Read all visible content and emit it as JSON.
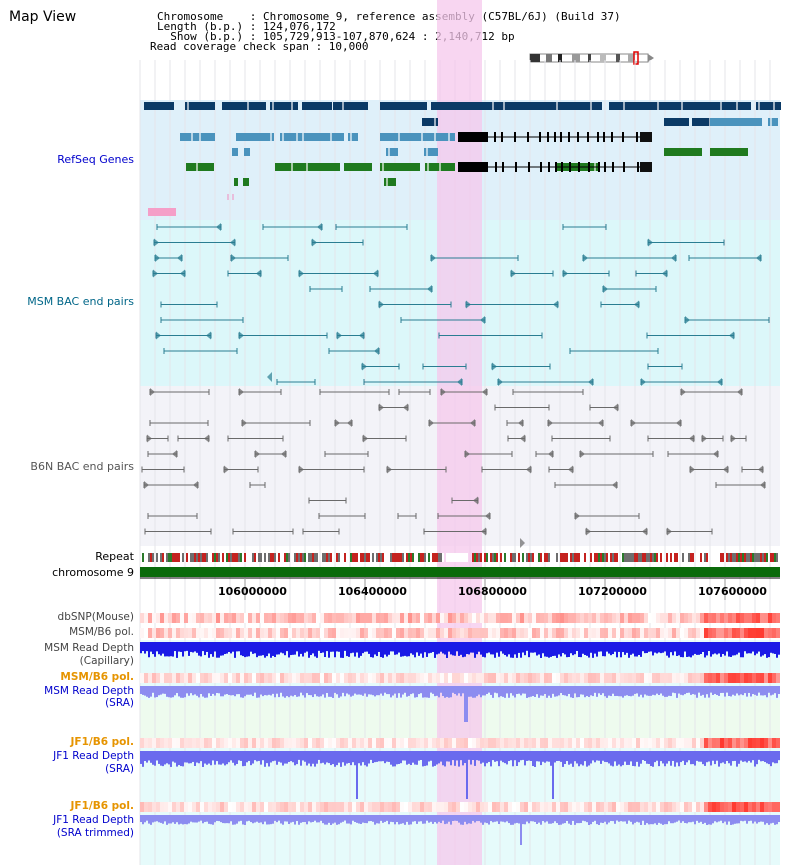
{
  "title": "Map View",
  "header": {
    "chromosome_line": "Chromosome    : Chromosome 9, reference assembly (C57BL/6J) (Build 37)",
    "length_line": "Length (b.p.) : 124,076,172",
    "show_line": "  Show (b.p.) : 105,729,913-107,870,624 : 2,140,712 bp",
    "coverage_line": "Read coverage check span : 10,000"
  },
  "tracks": {
    "refseq": "RefSeq Genes",
    "msm_bac": "MSM BAC end pairs",
    "b6n_bac": "B6N BAC end pairs",
    "repeat": "Repeat",
    "chromosome": "chromosome 9",
    "dbsnp": "dbSNP(Mouse)",
    "msm_b6_pol_1": "MSM/B6 pol.",
    "msm_depth_cap_1": "MSM Read Depth",
    "msm_depth_cap_2": "(Capillary)",
    "msm_b6_pol_2": "MSM/B6 pol.",
    "msm_depth_sra_1": "MSM Read Depth",
    "msm_depth_sra_2": "(SRA)",
    "jf1_b6_pol_1": "JF1/B6 pol.",
    "jf1_depth_sra_1": "JF1 Read Depth",
    "jf1_depth_sra_2": "(SRA)",
    "jf1_b6_pol_2": "JF1/B6 pol.",
    "jf1_depth_trim_1": "JF1 Read Depth",
    "jf1_depth_trim_2": "(SRA trimmed)"
  },
  "axis": {
    "ticks": [
      "106000000",
      "106400000",
      "106800000",
      "107200000",
      "107600000"
    ]
  },
  "colors": {
    "refseq_bg": "#dff0fa",
    "msm_bg": "#dcf7fa",
    "b6n_bg": "#f1f1f8",
    "highlight": "#f8d9f0",
    "refseq_dark": "#0b3a66",
    "refseq_light": "#4a93bd",
    "refseq_green": "#1f7a1f",
    "msm_line": "#2a7d92",
    "b6n_line": "#6a6a6a",
    "chrom_green": "#0a6a0a",
    "label_blue": "#0000cc",
    "label_teal": "#006688",
    "label_orange": "#e69400",
    "label_gray": "#444444"
  }
}
